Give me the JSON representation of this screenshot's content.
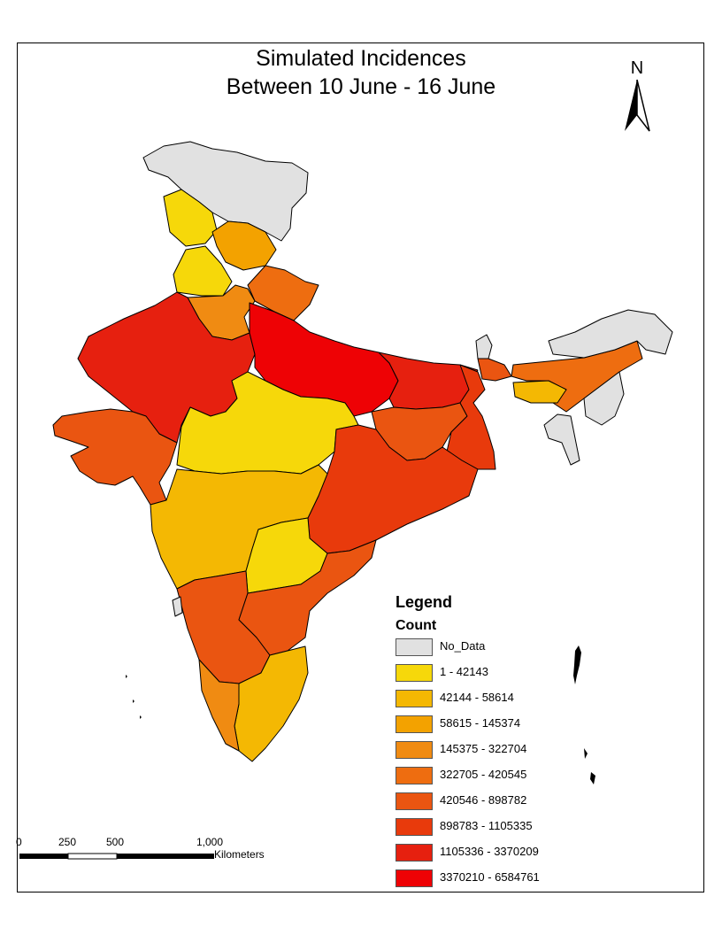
{
  "title": {
    "line1": "Simulated Incidences",
    "line2": "Between 10 June - 16 June"
  },
  "north_arrow": {
    "label": "N",
    "icon": "north-arrow-icon"
  },
  "legend": {
    "title": "Legend",
    "subtitle": "Count",
    "items": [
      {
        "label": "No_Data",
        "color": "#e1e1e1"
      },
      {
        "label": "1 - 42143",
        "color": "#f6d80a"
      },
      {
        "label": "42144 - 58614",
        "color": "#f4b803"
      },
      {
        "label": "58615 - 145374",
        "color": "#f3a200"
      },
      {
        "label": "145375 - 322704",
        "color": "#f08b12"
      },
      {
        "label": "322705 - 420545",
        "color": "#ee6d10"
      },
      {
        "label": "420546 - 898782",
        "color": "#ea5511"
      },
      {
        "label": "898783 - 1105335",
        "color": "#e83a0c"
      },
      {
        "label": "1105336 - 3370209",
        "color": "#e6200f"
      },
      {
        "label": "3370210 - 6584761",
        "color": "#ee0205"
      }
    ]
  },
  "scale_bar": {
    "ticks": [
      "0",
      "250",
      "500",
      "1,000"
    ],
    "unit": "Kilometers"
  }
}
